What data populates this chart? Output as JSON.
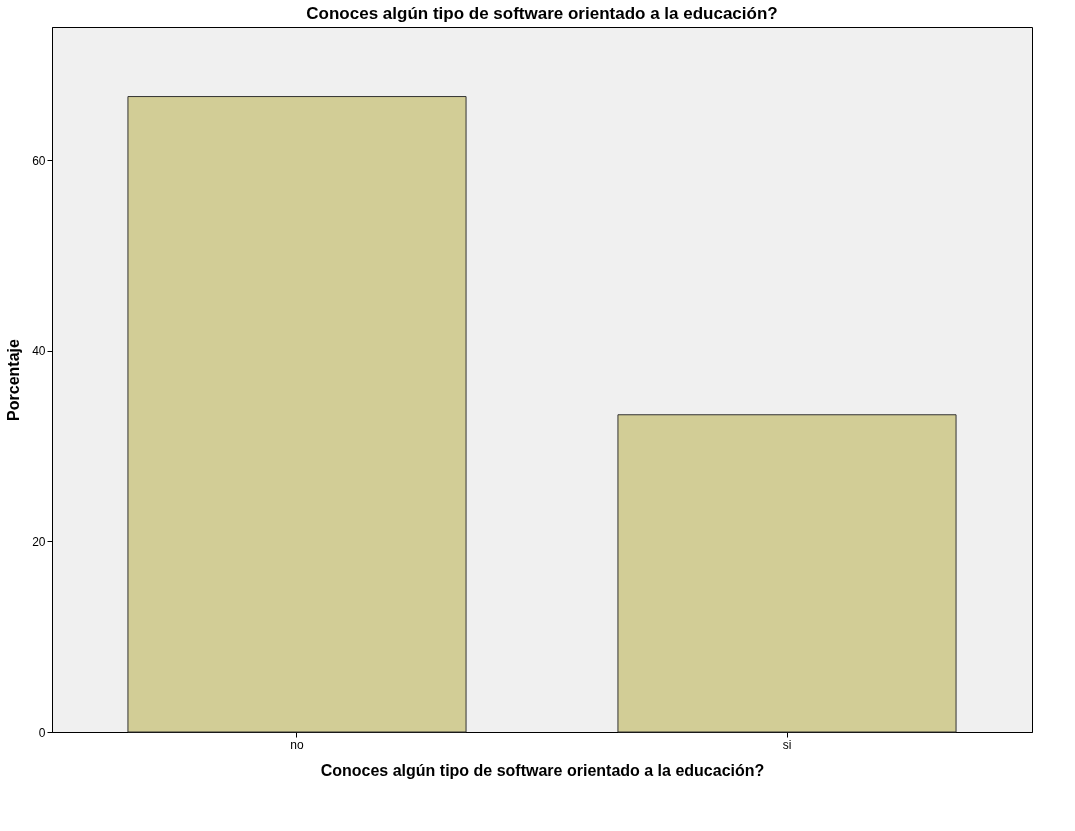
{
  "chart_data": {
    "type": "bar",
    "title": "Conoces algún tipo de software orientado a la educación?",
    "xlabel": "Conoces algún tipo de software orientado a la educación?",
    "ylabel": "Porcentaje",
    "categories": [
      "no",
      "si"
    ],
    "values": [
      66.7,
      33.3
    ],
    "color": "#d2cd96",
    "ylim": [
      0,
      74
    ],
    "yticks": [
      0,
      20,
      40,
      60
    ],
    "grid": false
  }
}
